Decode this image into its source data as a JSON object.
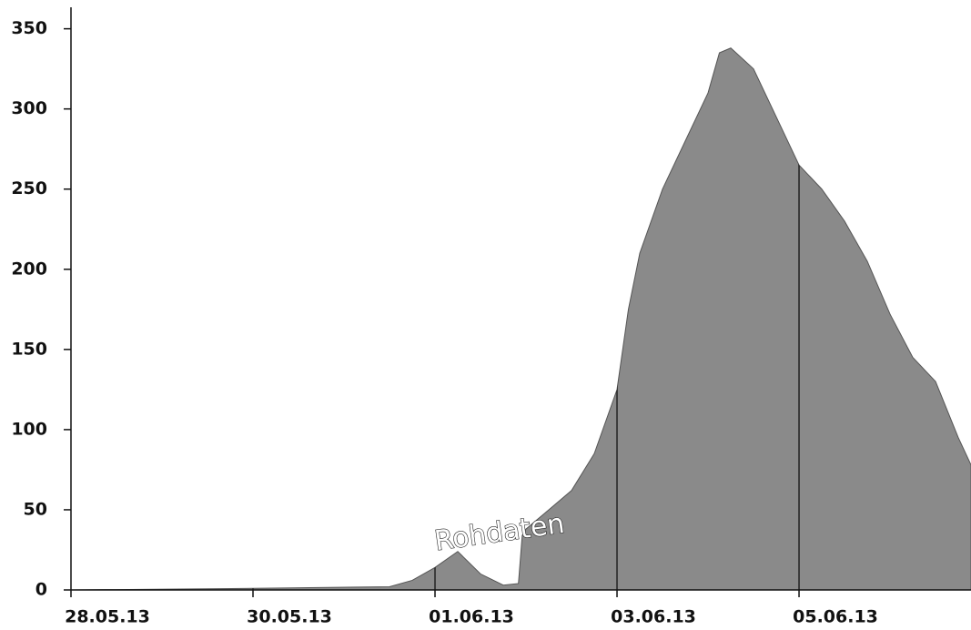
{
  "chart_data": {
    "type": "area",
    "x": [
      "2013-05-28T00:00",
      "2013-05-30T00:00",
      "2013-05-31T12:00",
      "2013-05-31T18:00",
      "2013-06-01T00:00",
      "2013-06-01T06:00",
      "2013-06-01T12:00",
      "2013-06-01T18:00",
      "2013-06-01T22:00",
      "2013-06-01T23:00",
      "2013-06-02T00:00",
      "2013-06-02T06:00",
      "2013-06-02T12:00",
      "2013-06-02T18:00",
      "2013-06-03T00:00",
      "2013-06-03T03:00",
      "2013-06-03T06:00",
      "2013-06-03T12:00",
      "2013-06-03T18:00",
      "2013-06-04T00:00",
      "2013-06-04T03:00",
      "2013-06-04T06:00",
      "2013-06-04T12:00",
      "2013-06-04T18:00",
      "2013-06-05T00:00",
      "2013-06-05T06:00",
      "2013-06-05T12:00",
      "2013-06-05T18:00",
      "2013-06-06T00:00",
      "2013-06-06T06:00",
      "2013-06-06T12:00",
      "2013-06-06T18:00",
      "2013-06-06T21:21"
    ],
    "values": [
      0,
      1,
      2,
      6,
      14,
      24,
      10,
      3,
      4,
      34,
      38,
      50,
      62,
      85,
      125,
      175,
      210,
      250,
      280,
      310,
      335,
      338,
      325,
      295,
      265,
      250,
      230,
      205,
      172,
      145,
      130,
      95,
      78
    ],
    "color": "#8a8a8a",
    "xlim": [
      "2013-05-28T00:00",
      "2013-06-06T21:21"
    ],
    "xticks": [
      {
        "value": "2013-05-28T00:00",
        "label": "28.05.13"
      },
      {
        "value": "2013-05-30T00:00",
        "label": "30.05.13"
      },
      {
        "value": "2013-06-01T00:00",
        "label": "01.06.13"
      },
      {
        "value": "2013-06-03T00:00",
        "label": "03.06.13"
      },
      {
        "value": "2013-06-05T00:00",
        "label": "05.06.13"
      }
    ],
    "ylim": [
      0,
      360
    ],
    "yticks": [
      0,
      50,
      100,
      150,
      200,
      250,
      300,
      350
    ],
    "annotation": "Rohdaten"
  }
}
